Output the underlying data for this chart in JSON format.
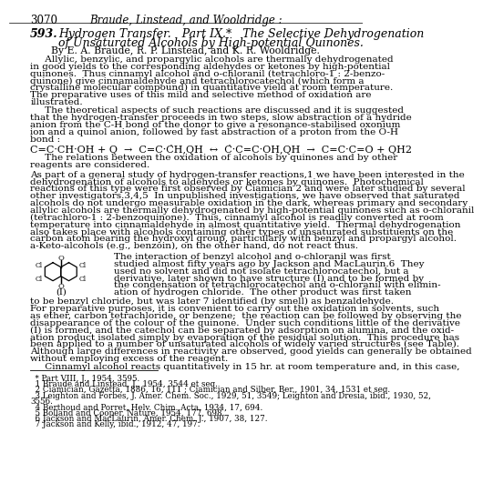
{
  "bg_color": "#ffffff",
  "page_number": "3070",
  "header_center": "Braude, Linstead, and Wooldridge :",
  "section_number": "593.",
  "title_line1": "Hydrogen Transfer.   Part IX.*   The Selective Dehydrogenation",
  "title_line2": "of Unsaturated Alcohols by High-potential Quinones.",
  "byline": "By E. A. Braude, R. P. Linstead, and K. R. Wooldridge.",
  "abstract_p1_lines": [
    "     Allylic, benzylic, and propargylic alcohols are thermally dehydrogenated",
    "in good yields to the corresponding aldehydes or ketones by high-potential",
    "quinones.  Thus cinnamyl alcohol and o-chloranil (tetrachloro-1 : 2-benzo-",
    "quinone) give cinnamaldehyde and tetrachlorocatechol (which form a",
    "crystalline molecular compound) in quantitative yield at room temperature.",
    "The preparative uses of this mild and selective method of oxidation are",
    "illustrated."
  ],
  "abstract_p2_lines": [
    "     The theoretical aspects of such reactions are discussed and it is suggested",
    "that the hydrogen-transfer proceeds in two steps, slow abstraction of a hydride",
    "anion from the C-H bond of the donor to give a resonance-stabilised oxonium",
    "ion and a quinol anion, followed by fast abstraction of a proton from the O-H",
    "bond :"
  ],
  "after_eq_lines": [
    "     The relations between the oxidation of alcohols by quinones and by other",
    "reagents are considered."
  ],
  "main_p1_lines": [
    "As part of a general study of hydrogen-transfer reactions,1 we have been interested in the",
    "dehydrogenation of alcohols to aldehydes or ketones by quinones.  Photochemical",
    "reactions of this type were first observed by Ciamician 2 and were later studied by several",
    "other investigators.3,4,5  In unpublished investigations, we have observed that saturated",
    "alcohols do not undergo measurable oxidation in the dark, whereas primary and secondary",
    "allylic alcohols are thermally dehydrogenated by high-potential quinones such as o-chloranil",
    "(tetrachloro-1 : 2-benzoquinone).  Thus, cinnamyl alcohol is readily converted at room",
    "temperature into cinnamaldehyde in almost quantitative yield.  Thermal dehydrogenation",
    "also takes place with alcohols containing other types of unsaturated substituents on the",
    "carbon atom bearing the hydroxyl group, particularly with benzyl and propargyl alcohol.",
    "a-Keto-alcohols (e.g., benzoin), on the other hand, do not react thus."
  ],
  "inset_lines": [
    "The interaction of benzyl alcohol and o-chloranil was first",
    "studied almost fifty years ago by Jackson and MacLaurin.6  They",
    "used no solvent and did not isolate tetrachlorocatechol, but a",
    "derivative, later shown to have structure (I) and to be formed by",
    "the condensation of tetrachlorocatechol and o-chloranil with elimin-",
    "ation of hydrogen chloride.  The other product was first taken"
  ],
  "last_line": "to be benzyl chloride, but was later 7 identified (by smell) as benzaldehyde.",
  "prep_lines": [
    "For preparative purposes, it is convenient to carry out the oxidation in solvents, such",
    "as ether, carbon tetrachloride, or benzene;  the reaction can be followed by observing the",
    "disappearance of the colour of the quinone.  Under such conditions little of the derivative",
    "(I) is formed, and the catechol can be separated by adsorption on alumina, and the oxid-",
    "ation product isolated simply by evaporation of the residual solution.  This procedure has",
    "been applied to a number of unsaturated alcohols of widely varied structures (see Table).",
    "Although large differences in reactivity are observed, good yields can generally be obtained",
    "without employing excess of the reagent."
  ],
  "cinnamyl_line": "     Cinnamyl alcohol reacts quantitatively in 15 hr. at room temperature and, in this case,",
  "footnote_lines": [
    "  * Part VIII, J., 1954, 3595.",
    "  1 Braude and Linstead, J., 1954, 3544 et seq.",
    "  2 Ciamician, Gazetta, 1886, 16, 111 ; Ciamician and Silber, Ber., 1901, 34, 1531 et seq.",
    "  3 Leighton and Forbes, J. Amer. Chem. Soc., 1929, 51, 3549; Leighton and Dresia, ibid., 1930, 52,",
    "3556.",
    "  4 Berthoud and Porret, Helv. Chim. Acta, 1934, 17, 694.",
    "  5 Bolland and Cooper, Nature, 1954, 177, 698.",
    "  6 Jackson and MacLaurin, Amer. Chem. J., 1907, 38, 127.",
    "  7 Jackson and Kelly, ibid., 1912, 47, 197."
  ]
}
